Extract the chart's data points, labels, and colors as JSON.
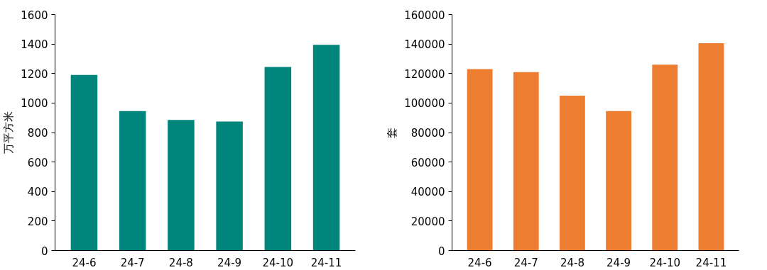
{
  "chart_data": [
    {
      "type": "bar",
      "ylabel": "万平方米",
      "categories": [
        "24-6",
        "24-7",
        "24-8",
        "24-9",
        "24-10",
        "24-11"
      ],
      "series": [
        {
          "color": "#00857c",
          "values": [
            1190,
            945,
            885,
            875,
            1245,
            1395
          ]
        }
      ],
      "ylim": [
        0,
        1600
      ],
      "yticks": [
        0,
        200,
        400,
        600,
        800,
        1000,
        1200,
        1400,
        1600
      ],
      "grid": false
    },
    {
      "type": "bar",
      "ylabel": "套",
      "categories": [
        "24-6",
        "24-7",
        "24-8",
        "24-9",
        "24-10",
        "24-11"
      ],
      "series": [
        {
          "color": "#ed7d31",
          "values": [
            123000,
            121000,
            105000,
            94500,
            126000,
            140500
          ]
        }
      ],
      "ylim": [
        0,
        160000
      ],
      "yticks": [
        0,
        20000,
        40000,
        60000,
        80000,
        100000,
        120000,
        140000,
        160000
      ],
      "grid": false
    }
  ]
}
